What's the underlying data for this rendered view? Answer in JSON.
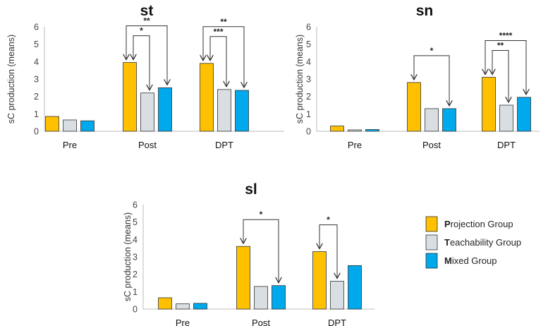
{
  "chart_data": [
    {
      "type": "bar",
      "title": "st",
      "ylabel": "sC production (means)",
      "ylim": [
        0,
        6
      ],
      "yticks": [
        "0",
        "1",
        "2",
        "3",
        "4",
        "5",
        "6"
      ],
      "categories": [
        "Pre",
        "Post",
        "DPT"
      ],
      "series": [
        {
          "name": "Projection Group",
          "values": [
            0.85,
            3.95,
            3.9
          ]
        },
        {
          "name": "Teachability Group",
          "values": [
            0.65,
            2.2,
            2.4
          ]
        },
        {
          "name": "Mixed Group",
          "values": [
            0.6,
            2.5,
            2.35
          ]
        }
      ],
      "annotations": [
        {
          "category": "Post",
          "from": "Projection Group",
          "to": "Mixed Group",
          "label": "**"
        },
        {
          "category": "Post",
          "from": "Projection Group",
          "to": "Teachability Group",
          "label": "*"
        },
        {
          "category": "DPT",
          "from": "Projection Group",
          "to": "Mixed Group",
          "label": "**"
        },
        {
          "category": "DPT",
          "from": "Projection Group",
          "to": "Teachability Group",
          "label": "***"
        }
      ]
    },
    {
      "type": "bar",
      "title": "sn",
      "ylabel": "sC production (means)",
      "ylim": [
        0,
        6
      ],
      "yticks": [
        "0",
        "1",
        "2",
        "3",
        "4",
        "5",
        "6"
      ],
      "categories": [
        "Pre",
        "Post",
        "DPT"
      ],
      "series": [
        {
          "name": "Projection Group",
          "values": [
            0.3,
            2.8,
            3.1
          ]
        },
        {
          "name": "Teachability Group",
          "values": [
            0.08,
            1.3,
            1.5
          ]
        },
        {
          "name": "Mixed Group",
          "values": [
            0.1,
            1.3,
            1.95
          ]
        }
      ],
      "annotations": [
        {
          "category": "Post",
          "from": "Projection Group",
          "to": "Mixed Group",
          "label": "*"
        },
        {
          "category": "DPT",
          "from": "Projection Group",
          "to": "Mixed Group",
          "label": "****"
        },
        {
          "category": "DPT",
          "from": "Projection Group",
          "to": "Teachability Group",
          "label": "**"
        }
      ]
    },
    {
      "type": "bar",
      "title": "sl",
      "ylabel": "sC production (means)",
      "ylim": [
        0,
        6
      ],
      "yticks": [
        "0",
        "1",
        "2",
        "3",
        "4",
        "5",
        "6"
      ],
      "categories": [
        "Pre",
        "Post",
        "DPT"
      ],
      "series": [
        {
          "name": "Projection Group",
          "values": [
            0.65,
            3.6,
            3.3
          ]
        },
        {
          "name": "Teachability Group",
          "values": [
            0.3,
            1.3,
            1.6
          ]
        },
        {
          "name": "Mixed Group",
          "values": [
            0.33,
            1.35,
            2.5
          ]
        }
      ],
      "annotations": [
        {
          "category": "Post",
          "from": "Projection Group",
          "to": "Mixed Group",
          "label": "*"
        },
        {
          "category": "DPT",
          "from": "Projection Group",
          "to": "Teachability Group",
          "label": "*"
        }
      ]
    }
  ],
  "legend": [
    {
      "initial": "P",
      "rest": "rojection Group",
      "color": "#FFC000"
    },
    {
      "initial": "T",
      "rest": "eachability Group",
      "color": "#D9DEE3"
    },
    {
      "initial": "M",
      "rest": "ixed Group",
      "color": "#00A8EC"
    }
  ],
  "colors": {
    "projection": "#FFC000",
    "teachability": "#D9DEE3",
    "mixed": "#00A8EC",
    "stroke": "#333333"
  }
}
